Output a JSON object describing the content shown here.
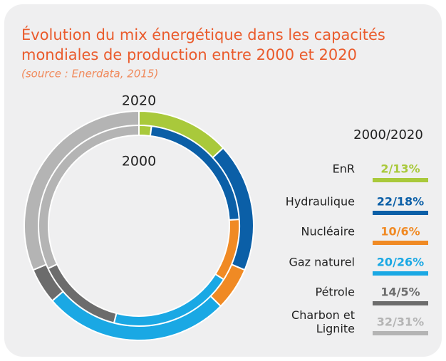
{
  "chart_data": {
    "type": "donut",
    "title": "Évolution du mix énergétique dans les capacités mondiales de production entre 2000 et 2020",
    "subtitle": "(source : Enerdata, 2015)",
    "legend_title": "2000/2020",
    "categories": [
      "EnR",
      "Hydraulique",
      "Nucléaire",
      "Gaz naturel",
      "Pétrole",
      "Charbon et Lignite"
    ],
    "colors": [
      "#a9c93b",
      "#0b5fa7",
      "#f08a24",
      "#1aa8e4",
      "#6c6c6c",
      "#b4b4b4"
    ],
    "series": [
      {
        "name": "2000",
        "values": [
          2,
          22,
          10,
          20,
          14,
          32
        ]
      },
      {
        "name": "2020",
        "values": [
          13,
          18,
          6,
          26,
          5,
          31
        ]
      }
    ],
    "value_labels": [
      "2/13%",
      "22/18%",
      "10/6%",
      "20/26%",
      "14/5%",
      "32/31%"
    ],
    "legend": "right"
  }
}
